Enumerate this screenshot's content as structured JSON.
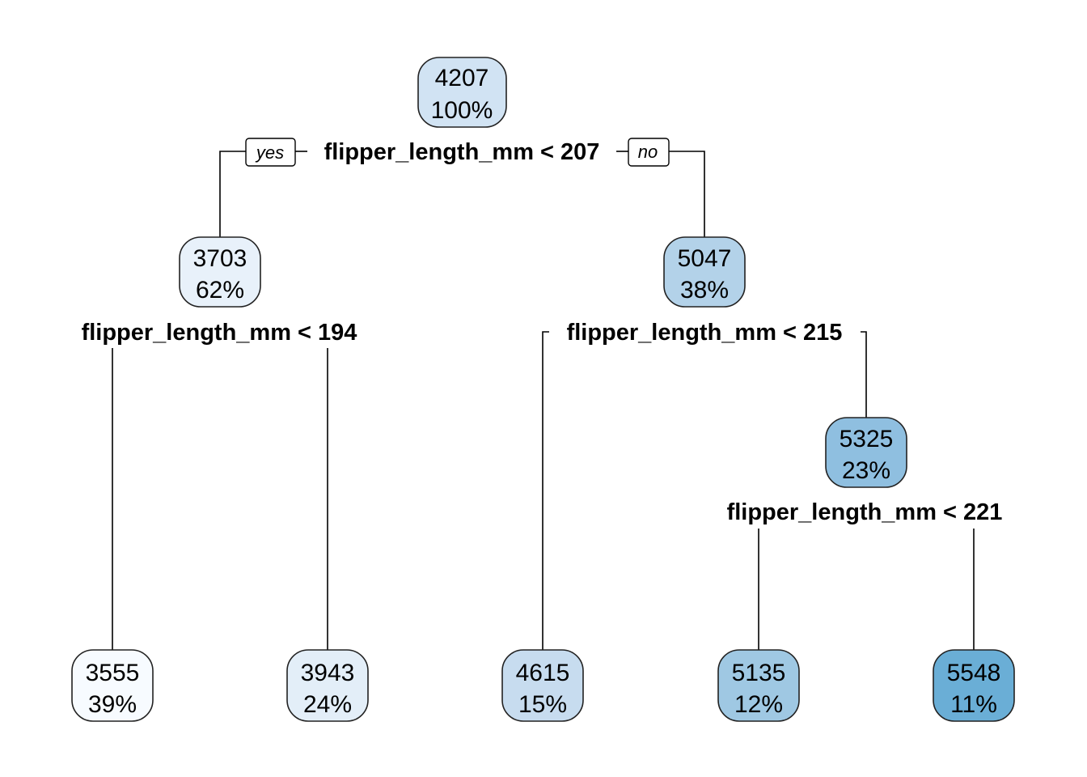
{
  "tree": {
    "branch_labels": {
      "yes": "yes",
      "no": "no"
    },
    "nodes": [
      {
        "id": "root",
        "value": "4207",
        "percent": "100%",
        "color": "#d1e3f3"
      },
      {
        "id": "n2",
        "value": "3703",
        "percent": "62%",
        "color": "#e8f1fa"
      },
      {
        "id": "n3",
        "value": "5047",
        "percent": "38%",
        "color": "#b3d2e9"
      },
      {
        "id": "n7",
        "value": "5325",
        "percent": "23%",
        "color": "#8fbfe0"
      },
      {
        "id": "leaf4",
        "value": "3555",
        "percent": "39%",
        "color": "#f7fbff"
      },
      {
        "id": "leaf5",
        "value": "3943",
        "percent": "24%",
        "color": "#e3eef8"
      },
      {
        "id": "leaf6",
        "value": "4615",
        "percent": "15%",
        "color": "#c7dcef"
      },
      {
        "id": "leaf14",
        "value": "5135",
        "percent": "12%",
        "color": "#9fc8e3"
      },
      {
        "id": "leaf15",
        "value": "5548",
        "percent": "11%",
        "color": "#6aaed6"
      }
    ],
    "splits": [
      {
        "id": "s-root",
        "label": "flipper_length_mm < 207"
      },
      {
        "id": "s-n2",
        "label": "flipper_length_mm < 194"
      },
      {
        "id": "s-n3",
        "label": "flipper_length_mm < 215"
      },
      {
        "id": "s-n7",
        "label": "flipper_length_mm < 221"
      }
    ]
  }
}
